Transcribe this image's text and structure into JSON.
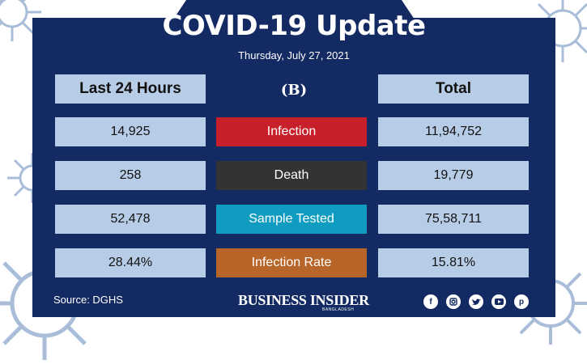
{
  "header": {
    "title": "COVID-19 Update",
    "date": "Thursday, July 27, 2021"
  },
  "columns": {
    "last24": "Last 24 Hours",
    "total": "Total"
  },
  "logo_icon": "business-insider-b-logo",
  "rows": [
    {
      "label": "Infection",
      "last24": "14,925",
      "total": "11,94,752",
      "color": "#c8202a"
    },
    {
      "label": "Death",
      "last24": "258",
      "total": "19,779",
      "color": "#333333"
    },
    {
      "label": "Sample Tested",
      "last24": "52,478",
      "total": "75,58,711",
      "color": "#0f9cc0"
    },
    {
      "label": "Infection Rate",
      "last24": "28.44%",
      "total": "15.81%",
      "color": "#b8652a"
    }
  ],
  "footer": {
    "source": "Source: DGHS",
    "brand": "BUSINESS INSIDER",
    "brand_sub": "BANGLADESH",
    "social_icons": [
      "facebook-icon",
      "instagram-icon",
      "twitter-icon",
      "youtube-icon",
      "pinterest-icon"
    ]
  },
  "colors": {
    "panel": "#132a63",
    "cell": "#b7cce6",
    "virus": "#a9bdd9"
  }
}
